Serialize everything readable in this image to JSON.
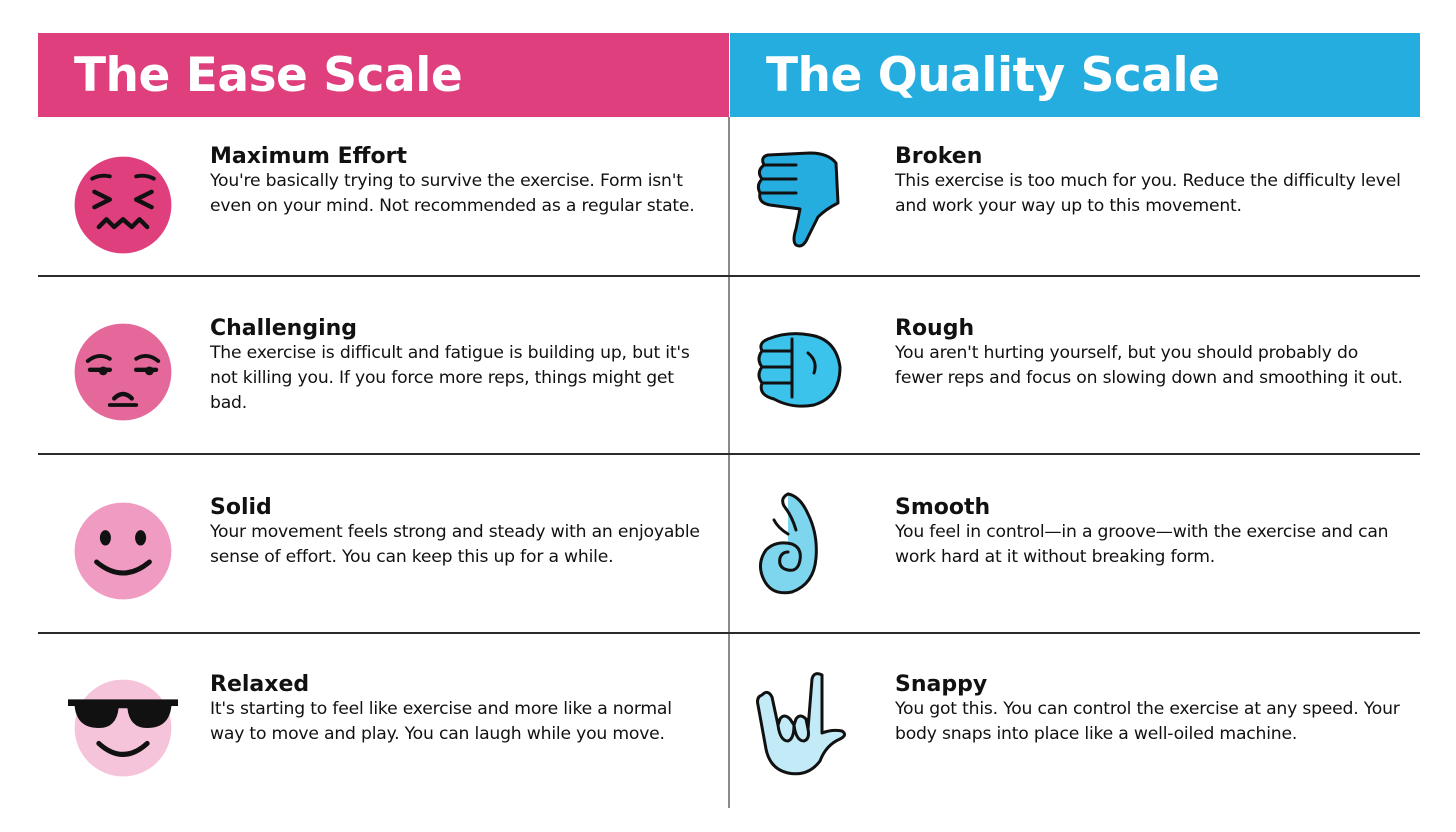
{
  "ease_scale": {
    "header": "The Ease Scale",
    "accent_color": "#e03f7e",
    "items": [
      {
        "title": "Maximum Effort",
        "desc": "You're basically trying to survive the exercise. Form isn't even on your mind. Not recommended as a regular state.",
        "icon": "confounded-face-icon",
        "color": "#e03f7e"
      },
      {
        "title": "Challenging",
        "desc": "The exercise is difficult and fatigue is building up, but it's not killing you. If you force more reps, things might get bad.",
        "icon": "unamused-face-icon",
        "color": "#e5689b"
      },
      {
        "title": "Solid",
        "desc": "Your movement feels strong and steady with an enjoyable sense of effort. You can keep this up for a while.",
        "icon": "smiling-face-icon",
        "color": "#f09bc2"
      },
      {
        "title": "Relaxed",
        "desc": "It's starting to feel like exercise and more like a normal way to move and play. You can laugh while you move.",
        "icon": "sunglasses-face-icon",
        "color": "#f6c4da"
      }
    ]
  },
  "quality_scale": {
    "header": "The Quality Scale",
    "accent_color": "#26addf",
    "items": [
      {
        "title": "Broken",
        "desc": "This exercise is too much for you. Reduce the difficulty level and work your way up to this movement.",
        "icon": "thumbs-down-icon",
        "color": "#26addf"
      },
      {
        "title": "Rough",
        "desc": "You aren't hurting yourself, but you should probably do fewer reps and focus on slowing down and smoothing it out.",
        "icon": "fist-icon",
        "color": "#3cc3ec"
      },
      {
        "title": "Smooth",
        "desc": "You feel in control—in a groove—with the exercise and can work hard at it without breaking form.",
        "icon": "ok-hand-icon",
        "color": "#7dd6ee"
      },
      {
        "title": "Snappy",
        "desc": "You got this. You can control the exercise at any speed. Your body snaps into place like a well-oiled machine.",
        "icon": "rock-on-hand-icon",
        "color": "#c3eaf7"
      }
    ]
  }
}
